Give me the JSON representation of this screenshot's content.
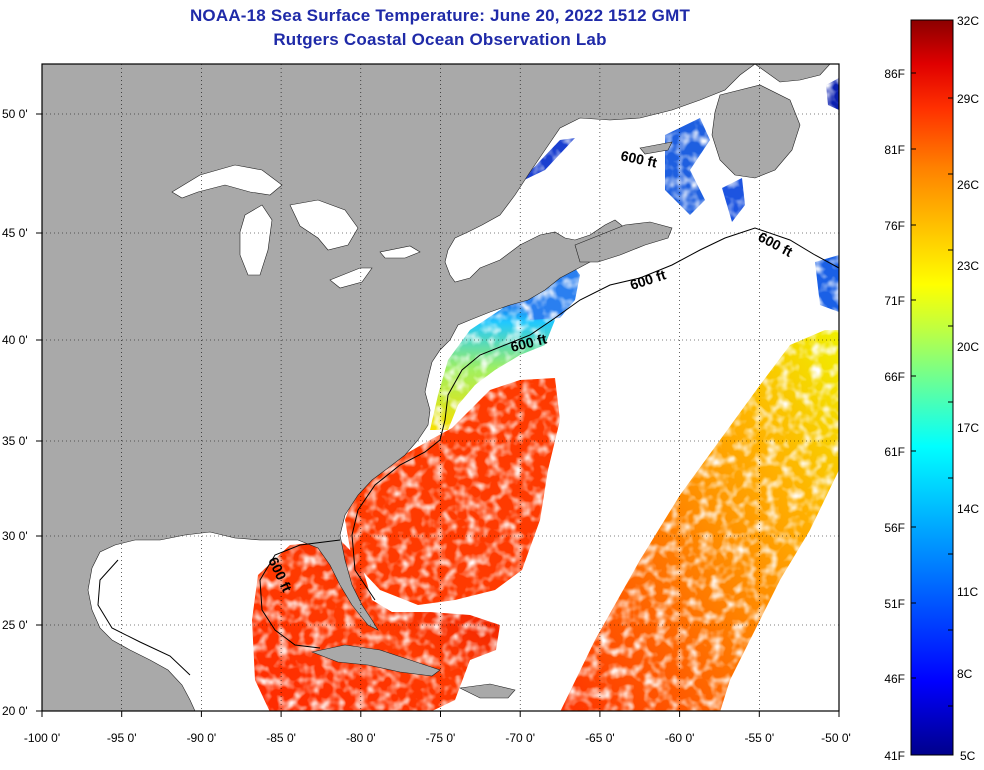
{
  "title": {
    "line1": "NOAA-18 Sea Surface Temperature:  June 20, 2022 1512 GMT",
    "line2": "Rutgers Coastal Ocean Observation Lab"
  },
  "colors": {
    "title_text": "#1f2aa8",
    "land": "#a9a9a9",
    "no_data": "#ffffff",
    "gridline": "#000000"
  },
  "map": {
    "projection": "equirectangular",
    "lon_range": [
      -100,
      -50
    ],
    "lat_range": [
      20,
      52.5
    ],
    "grid": "dotted",
    "x_ticks": [
      "-100 0'",
      "-95 0'",
      "-90 0'",
      "-85 0'",
      "-80 0'",
      "-75 0'",
      "-70 0'",
      "-65 0'",
      "-60 0'",
      "-55 0'",
      "-50 0'"
    ],
    "y_ticks": [
      "50 0'",
      "45 0'",
      "40 0'",
      "35 0'",
      "30 0'",
      "25 0'",
      "20 0'"
    ],
    "contour_labels": [
      "600 ft",
      "600 ft",
      "600 ft",
      "600 ft",
      "600 ft"
    ]
  },
  "colorbar": {
    "celsius_labels": [
      "32C",
      "29C",
      "26C",
      "23C",
      "20C",
      "17C",
      "14C",
      "11C",
      "8C",
      "5C"
    ],
    "fahrenheit_labels": [
      "86F",
      "81F",
      "76F",
      "71F",
      "66F",
      "61F",
      "56F",
      "51F",
      "46F",
      "41F"
    ],
    "range_c": [
      5,
      32
    ],
    "colors": [
      "#00008b",
      "#0000ff",
      "#0060ff",
      "#00c0ff",
      "#00ffff",
      "#60ffa0",
      "#c0ff40",
      "#ffff00",
      "#ffc000",
      "#ff8000",
      "#ff3000",
      "#e00000",
      "#8b0000"
    ]
  }
}
